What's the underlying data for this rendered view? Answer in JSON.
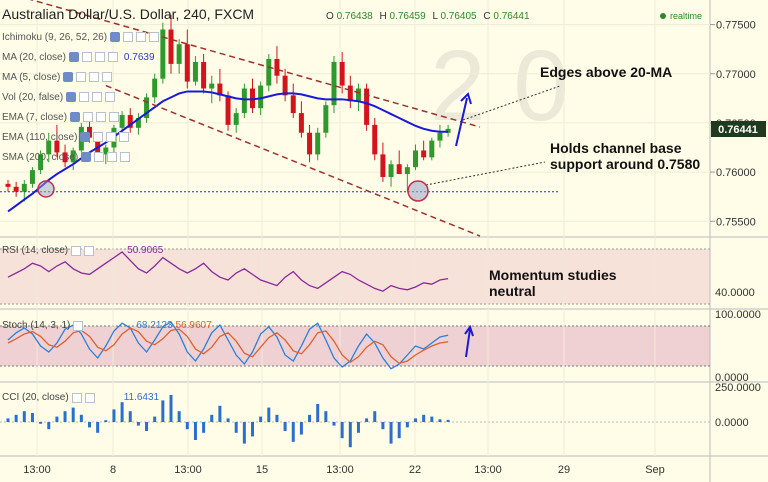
{
  "header": {
    "title": "Australian Dollar/U.S. Dollar, 240, FXCM",
    "ohlc": [
      {
        "k": "O",
        "v": "0.76438"
      },
      {
        "k": "H",
        "v": "0.76459"
      },
      {
        "k": "L",
        "v": "0.76405"
      },
      {
        "k": "C",
        "v": "0.76441"
      }
    ],
    "realtime": "realtime"
  },
  "overlays": [
    {
      "label": "Ichimoku (9, 26, 52, 26)",
      "value": ""
    },
    {
      "label": "MA (20, close)",
      "value": "0.7639"
    },
    {
      "label": "MA (5, close)",
      "value": ""
    },
    {
      "label": "Vol (20, false)",
      "value": ""
    },
    {
      "label": "EMA (7, close)",
      "value": ""
    },
    {
      "label": "EMA (110, close)",
      "value": ""
    },
    {
      "label": "SMA (200, close)",
      "value": ""
    }
  ],
  "price_axis": {
    "ticks": [
      "0.77500",
      "0.77000",
      "0.76500",
      "0.76000",
      "0.75500"
    ],
    "current": "0.76441"
  },
  "time_axis": [
    "13:00",
    "8",
    "13:00",
    "15",
    "13:00",
    "22",
    "13:00",
    "29",
    "Sep"
  ],
  "annotations": {
    "edges": "Edges above 20-MA",
    "holds_1": "Holds channel base",
    "holds_2": "support around 0.7580",
    "momentum_1": "Momentum studies",
    "momentum_2": "neutral"
  },
  "rsi": {
    "label": "RSI (14, close)",
    "value": "50.9065",
    "axis": "40.0000"
  },
  "stoch": {
    "label": "Stoch (14, 3, 1)",
    "value_k": "68.2123",
    "value_d": "56.9607",
    "axis_top": "100.0000",
    "axis_bottom": "0.0000"
  },
  "cci": {
    "label": "CCI (20, close)",
    "value": "11.6431",
    "axis_top": "250.0000",
    "axis_zero": "0.0000"
  },
  "colors": {
    "up": "#2e9a2e",
    "down": "#d4141c",
    "ma": "#1a1ad8",
    "channel": "#a0302a",
    "support": "#2233cc",
    "rsi_line": "#8a2a9a",
    "stoch_k": "#2a7fe0",
    "stoch_d": "#e06030",
    "cci": "#2a6fd0"
  },
  "chart_data": {
    "type": "candlestick",
    "symbol": "AUD/USD",
    "interval": "240",
    "ylim": [
      0.7535,
      0.7775
    ],
    "candles": [
      [
        0.7588,
        0.7592,
        0.758,
        0.7585
      ],
      [
        0.7585,
        0.759,
        0.7575,
        0.758
      ],
      [
        0.758,
        0.7592,
        0.757,
        0.7588
      ],
      [
        0.7588,
        0.7605,
        0.7584,
        0.7602
      ],
      [
        0.7602,
        0.7622,
        0.7598,
        0.7618
      ],
      [
        0.7618,
        0.764,
        0.761,
        0.7632
      ],
      [
        0.7632,
        0.7648,
        0.7615,
        0.762
      ],
      [
        0.762,
        0.7628,
        0.7605,
        0.761
      ],
      [
        0.761,
        0.7625,
        0.7602,
        0.7622
      ],
      [
        0.7622,
        0.765,
        0.762,
        0.7646
      ],
      [
        0.7646,
        0.7655,
        0.763,
        0.7635
      ],
      [
        0.7635,
        0.764,
        0.7615,
        0.7618
      ],
      [
        0.7618,
        0.7628,
        0.7608,
        0.7625
      ],
      [
        0.7625,
        0.7648,
        0.762,
        0.7645
      ],
      [
        0.7645,
        0.7662,
        0.764,
        0.7658
      ],
      [
        0.7658,
        0.7665,
        0.764,
        0.7645
      ],
      [
        0.7645,
        0.766,
        0.7638,
        0.7655
      ],
      [
        0.7655,
        0.768,
        0.765,
        0.7676
      ],
      [
        0.7676,
        0.77,
        0.767,
        0.7695
      ],
      [
        0.7695,
        0.7752,
        0.769,
        0.7745
      ],
      [
        0.7745,
        0.776,
        0.77,
        0.771
      ],
      [
        0.771,
        0.7735,
        0.77,
        0.773
      ],
      [
        0.773,
        0.7745,
        0.7685,
        0.7692
      ],
      [
        0.7692,
        0.7718,
        0.7688,
        0.7712
      ],
      [
        0.7712,
        0.772,
        0.768,
        0.7685
      ],
      [
        0.7685,
        0.7698,
        0.767,
        0.769
      ],
      [
        0.769,
        0.7705,
        0.7672,
        0.7678
      ],
      [
        0.7678,
        0.7682,
        0.7642,
        0.7648
      ],
      [
        0.7648,
        0.7665,
        0.764,
        0.766
      ],
      [
        0.766,
        0.769,
        0.7655,
        0.7685
      ],
      [
        0.7685,
        0.7695,
        0.766,
        0.7665
      ],
      [
        0.7665,
        0.7692,
        0.7658,
        0.7688
      ],
      [
        0.7688,
        0.772,
        0.7682,
        0.7715
      ],
      [
        0.7715,
        0.7728,
        0.769,
        0.7698
      ],
      [
        0.7698,
        0.7705,
        0.7672,
        0.7678
      ],
      [
        0.7678,
        0.769,
        0.7655,
        0.766
      ],
      [
        0.766,
        0.7672,
        0.7635,
        0.764
      ],
      [
        0.764,
        0.7648,
        0.761,
        0.7618
      ],
      [
        0.7618,
        0.7645,
        0.7612,
        0.764
      ],
      [
        0.764,
        0.7672,
        0.7635,
        0.7668
      ],
      [
        0.7668,
        0.7718,
        0.766,
        0.7712
      ],
      [
        0.7712,
        0.7722,
        0.768,
        0.7688
      ],
      [
        0.7688,
        0.7698,
        0.7665,
        0.7672
      ],
      [
        0.7672,
        0.769,
        0.7662,
        0.7685
      ],
      [
        0.7685,
        0.769,
        0.7642,
        0.7648
      ],
      [
        0.7648,
        0.7655,
        0.7612,
        0.7618
      ],
      [
        0.7618,
        0.763,
        0.759,
        0.7595
      ],
      [
        0.7595,
        0.7612,
        0.7585,
        0.7608
      ],
      [
        0.7608,
        0.7622,
        0.76,
        0.7598
      ],
      [
        0.7598,
        0.7608,
        0.758,
        0.7605
      ],
      [
        0.7605,
        0.7628,
        0.7602,
        0.7622
      ],
      [
        0.7622,
        0.7632,
        0.7612,
        0.7615
      ],
      [
        0.7615,
        0.7635,
        0.7612,
        0.7632
      ],
      [
        0.7632,
        0.7648,
        0.7625,
        0.764
      ],
      [
        0.764,
        0.7648,
        0.7636,
        0.7644
      ]
    ],
    "ma20": [
      0.756,
      0.7566,
      0.7572,
      0.7578,
      0.7585,
      0.7592,
      0.7598,
      0.7603,
      0.7608,
      0.7614,
      0.762,
      0.7625,
      0.763,
      0.7636,
      0.7642,
      0.7648,
      0.7654,
      0.766,
      0.7666,
      0.7672,
      0.7676,
      0.768,
      0.7682,
      0.7682,
      0.7682,
      0.7681,
      0.7679,
      0.7677,
      0.7675,
      0.7674,
      0.7674,
      0.7675,
      0.7677,
      0.7679,
      0.768,
      0.768,
      0.7679,
      0.7677,
      0.7675,
      0.7674,
      0.7674,
      0.7674,
      0.7673,
      0.7672,
      0.767,
      0.7667,
      0.7663,
      0.7659,
      0.7655,
      0.7651,
      0.7647,
      0.7644,
      0.7642,
      0.7641,
      0.7641
    ],
    "channel_upper": [
      [
        0.7782,
        0
      ],
      [
        0.7655,
        54
      ]
    ],
    "channel_lower": [
      [
        0.7688,
        12
      ],
      [
        0.7548,
        54
      ]
    ],
    "support_level": 0.758,
    "rsi": [
      52,
      55,
      58,
      62,
      60,
      56,
      60,
      63,
      58,
      55,
      54,
      58,
      62,
      66,
      70,
      64,
      58,
      55,
      60,
      66,
      62,
      58,
      55,
      58,
      62,
      56,
      52,
      50,
      55,
      58,
      54,
      50,
      48,
      46,
      52,
      56,
      50,
      46,
      44,
      48,
      52,
      56,
      54,
      50,
      47,
      44,
      42,
      46,
      44,
      43,
      45,
      48,
      47,
      50,
      51
    ],
    "stoch_k": [
      60,
      72,
      80,
      70,
      50,
      40,
      55,
      78,
      85,
      70,
      45,
      30,
      50,
      75,
      88,
      80,
      55,
      40,
      60,
      82,
      90,
      70,
      40,
      25,
      45,
      72,
      85,
      60,
      35,
      20,
      40,
      70,
      82,
      65,
      35,
      25,
      50,
      78,
      88,
      60,
      30,
      15,
      25,
      50,
      70,
      55,
      30,
      12,
      20,
      35,
      50,
      45,
      55,
      65,
      68
    ],
    "stoch_d": [
      55,
      62,
      70,
      74,
      66,
      52,
      48,
      58,
      72,
      76,
      66,
      48,
      42,
      52,
      70,
      80,
      74,
      58,
      52,
      62,
      76,
      78,
      66,
      45,
      37,
      48,
      66,
      72,
      58,
      38,
      32,
      48,
      64,
      72,
      60,
      42,
      37,
      52,
      72,
      75,
      58,
      35,
      23,
      32,
      48,
      58,
      52,
      32,
      21,
      25,
      35,
      43,
      50,
      55,
      57
    ],
    "cci": [
      20,
      40,
      60,
      50,
      -10,
      -40,
      30,
      60,
      80,
      40,
      -30,
      -60,
      10,
      70,
      110,
      60,
      -20,
      -50,
      30,
      120,
      150,
      60,
      -40,
      -100,
      -60,
      40,
      90,
      20,
      -60,
      -120,
      -80,
      30,
      80,
      40,
      -50,
      -110,
      -70,
      40,
      100,
      60,
      -20,
      -90,
      -140,
      -60,
      20,
      60,
      -40,
      -120,
      -90,
      -30,
      20,
      40,
      30,
      15,
      12
    ]
  }
}
